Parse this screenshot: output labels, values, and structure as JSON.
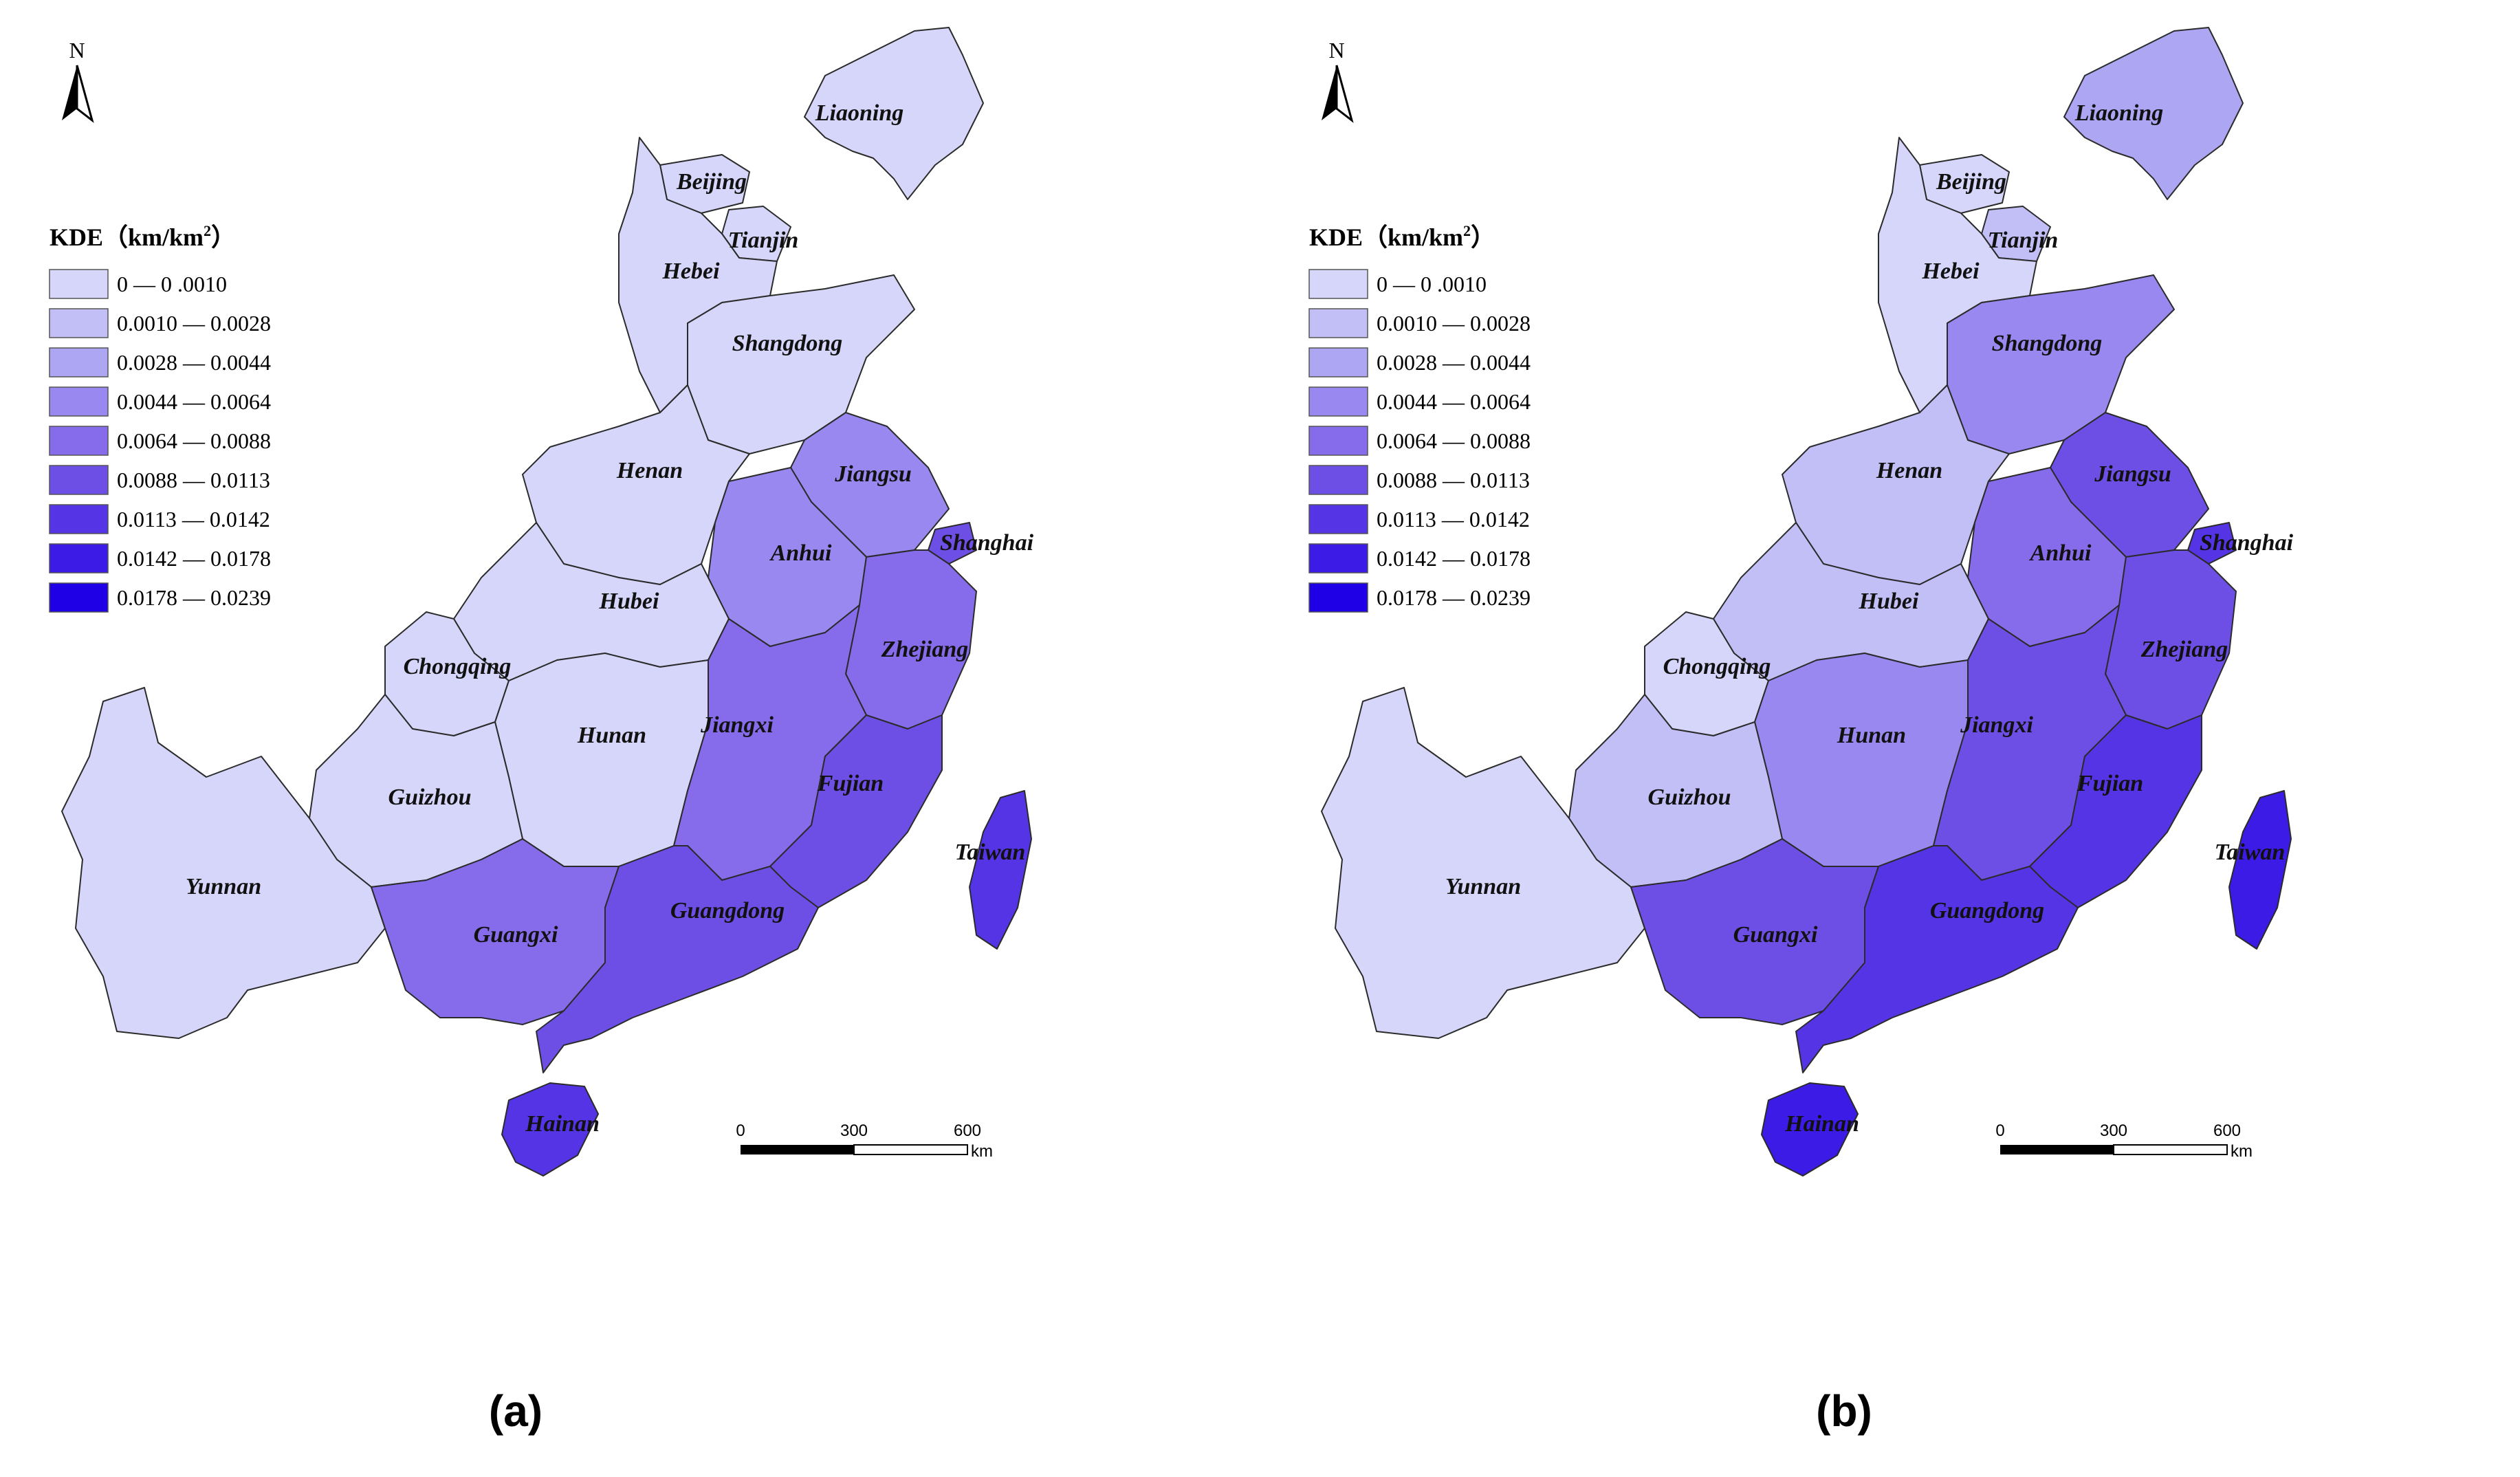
{
  "colors": {
    "classes": [
      "#d6d6fa",
      "#c2bff7",
      "#ab a6f3",
      "#9888ef",
      "#866bea",
      "#6e4fe6",
      "#5534e5",
      "#3c1be6",
      "#1f00e6"
    ],
    "boundary": "#2b2b2b",
    "sea": "#ffffff"
  },
  "north_arrow": {
    "label": "N"
  },
  "legend": {
    "title": "KDE（km/km",
    "title_sup": "2",
    "title_close": "）",
    "classes": [
      "0 — 0 .0010",
      "0.0010  — 0.0028",
      "0.0028  — 0.0044",
      "0.0044  — 0.0064",
      "0.0064  — 0.0088",
      "0.0088  — 0.0113",
      "0.0113  — 0.0142",
      "0.0142  — 0.0178",
      "0.0178  — 0.0239"
    ]
  },
  "scale_bar": {
    "ticks": [
      "0",
      "300",
      "600"
    ],
    "unit": "km"
  },
  "provinces": [
    "Liaoning",
    "Beijing",
    "Tianjin",
    "Hebei",
    "Shangdong",
    "Henan",
    "Jiangsu",
    "Shanghai",
    "Anhui",
    "Hubei",
    "Chongqing",
    "Zhejiang",
    "Hunan",
    "Jiangxi",
    "Guizhou",
    "Fujian",
    "Taiwan",
    "Yunnan",
    "Guangxi",
    "Guangdong",
    "Hainan"
  ],
  "panels": [
    {
      "id": "a",
      "caption": "(a)",
      "province_class": {
        "Liaoning": 0,
        "Beijing": 0,
        "Tianjin": 0,
        "Hebei": 0,
        "Shangdong": 0,
        "Henan": 0,
        "Jiangsu": 3,
        "Shanghai": 5,
        "Anhui": 3,
        "Hubei": 0,
        "Chongqing": 0,
        "Zhejiang": 4,
        "Hunan": 0,
        "Jiangxi": 4,
        "Guizhou": 0,
        "Fujian": 5,
        "Taiwan": 6,
        "Yunnan": 0,
        "Guangxi": 4,
        "Guangdong": 5,
        "Hainan": 6
      }
    },
    {
      "id": "b",
      "caption": "(b)",
      "province_class": {
        "Liaoning": 2,
        "Beijing": 0,
        "Tianjin": 1,
        "Hebei": 0,
        "Shangdong": 3,
        "Henan": 1,
        "Jiangsu": 5,
        "Shanghai": 6,
        "Anhui": 4,
        "Hubei": 1,
        "Chongqing": 0,
        "Zhejiang": 5,
        "Hunan": 3,
        "Jiangxi": 5,
        "Guizhou": 1,
        "Fujian": 6,
        "Taiwan": 7,
        "Yunnan": 0,
        "Guangxi": 5,
        "Guangdong": 6,
        "Hainan": 7
      }
    }
  ]
}
